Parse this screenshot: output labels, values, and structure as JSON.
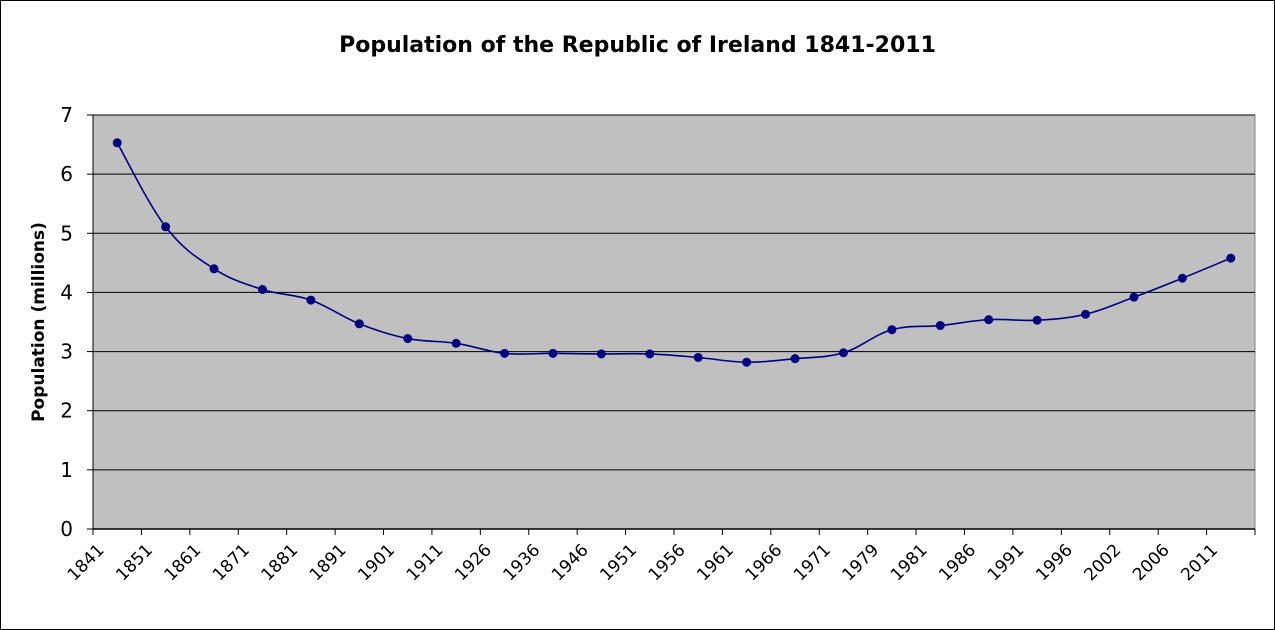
{
  "chart_data": {
    "type": "line",
    "title": "Population of the Republic of Ireland 1841-2011",
    "xlabel": "",
    "ylabel": "Population (millions)",
    "ylim": [
      0,
      7
    ],
    "yticks": [
      0,
      1,
      2,
      3,
      4,
      5,
      6,
      7
    ],
    "grid": true,
    "legend": "none",
    "categories": [
      "1841",
      "1851",
      "1861",
      "1871",
      "1881",
      "1891",
      "1901",
      "1911",
      "1926",
      "1936",
      "1946",
      "1951",
      "1956",
      "1961",
      "1966",
      "1971",
      "1979",
      "1981",
      "1986",
      "1991",
      "1996",
      "2002",
      "2006",
      "2011"
    ],
    "series": [
      {
        "values": [
          6.53,
          5.11,
          4.4,
          4.05,
          3.87,
          3.47,
          3.22,
          3.14,
          2.97,
          2.97,
          2.96,
          2.96,
          2.9,
          2.82,
          2.88,
          2.98,
          3.37,
          3.44,
          3.54,
          3.53,
          3.63,
          3.92,
          4.24,
          4.58
        ],
        "color": "#000080"
      }
    ],
    "colors": {
      "plot_background": "#c0c0c0",
      "gridline": "#000000",
      "line": "#000080"
    }
  }
}
